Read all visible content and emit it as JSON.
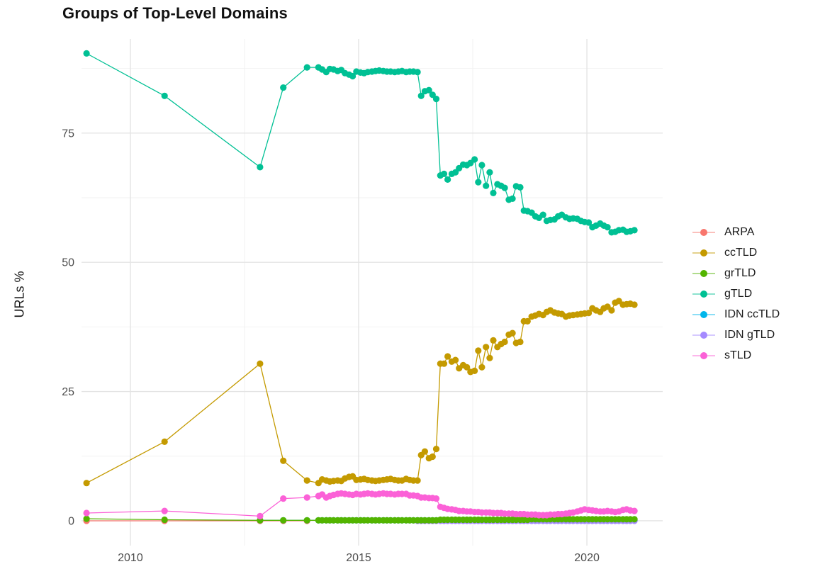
{
  "chart_data": {
    "type": "scatter",
    "title": "Groups of Top-Level Domains",
    "xlabel": "",
    "ylabel": "URLs %",
    "grid": true,
    "legend_position": "right",
    "xlim": [
      2008.93,
      2021.66
    ],
    "ylim": [
      -4.8,
      93.2
    ],
    "x_ticks": {
      "major": [
        2010,
        2015,
        2020
      ],
      "labels": [
        "2010",
        "2015",
        "2020"
      ],
      "minor": [
        2012.5,
        2017.5
      ]
    },
    "y_ticks": {
      "major": [
        0,
        25,
        50,
        75
      ],
      "labels": [
        "0",
        "25",
        "50",
        "75"
      ],
      "minor": [
        12.5,
        37.5,
        62.5,
        87.5
      ]
    },
    "x_main": [
      2009.04,
      2010.75,
      2012.84,
      2013.35,
      2013.87,
      2014.12,
      2014.2,
      2014.29,
      2014.37,
      2014.45,
      2014.54,
      2014.62,
      2014.7,
      2014.79,
      2014.87,
      2014.95,
      2015.04,
      2015.12,
      2015.2,
      2015.29,
      2015.37,
      2015.45,
      2015.54,
      2015.62,
      2015.7,
      2015.79,
      2015.87,
      2015.95,
      2016.04,
      2016.12,
      2016.2,
      2016.29,
      2016.37,
      2016.45,
      2016.54,
      2016.62,
      2016.7,
      2016.79,
      2016.87,
      2016.95,
      2017.04,
      2017.12,
      2017.2,
      2017.29,
      2017.37,
      2017.45,
      2017.54,
      2017.62,
      2017.7,
      2017.79,
      2017.87,
      2017.95,
      2018.04,
      2018.12,
      2018.2,
      2018.29,
      2018.37,
      2018.45,
      2018.54,
      2018.62,
      2018.7,
      2018.79,
      2018.87,
      2018.95,
      2019.04,
      2019.12,
      2019.2,
      2019.29,
      2019.37,
      2019.45,
      2019.54,
      2019.62,
      2019.7,
      2019.79,
      2019.87,
      2019.95,
      2020.04,
      2020.12,
      2020.2,
      2020.29,
      2020.37,
      2020.45,
      2020.54,
      2020.62,
      2020.7,
      2020.79,
      2020.87,
      2020.95,
      2021.04
    ],
    "series": [
      {
        "name": "ARPA",
        "color": "#F8766D",
        "x": [
          2009.04,
          2010.75,
          2012.84,
          2013.35,
          2013.87
        ],
        "y": [
          0.0,
          0.0,
          0.0,
          0.0,
          0.0
        ]
      },
      {
        "name": "ccTLD",
        "color": "#C49A00",
        "x_ref": "x_main",
        "y": [
          7.3,
          15.3,
          30.4,
          11.6,
          7.8,
          7.3,
          8.0,
          7.8,
          7.6,
          7.7,
          7.8,
          7.7,
          8.2,
          8.5,
          8.6,
          7.9,
          8.0,
          8.1,
          7.9,
          7.8,
          7.7,
          7.8,
          7.9,
          8.0,
          8.1,
          7.9,
          7.8,
          7.8,
          8.1,
          7.9,
          7.8,
          7.8,
          12.7,
          13.4,
          12.1,
          12.4,
          13.9,
          30.4,
          30.4,
          31.8,
          30.8,
          31.1,
          29.5,
          30.1,
          29.7,
          28.8,
          29.0,
          32.9,
          29.7,
          33.6,
          31.5,
          34.9,
          33.6,
          34.2,
          34.6,
          36.0,
          36.3,
          34.4,
          34.6,
          38.6,
          38.6,
          39.5,
          39.7,
          40.0,
          39.8,
          40.4,
          40.7,
          40.3,
          40.1,
          40.0,
          39.5,
          39.7,
          39.8,
          39.9,
          40.0,
          40.1,
          40.2,
          41.1,
          40.7,
          40.4,
          41.1,
          41.4,
          40.7,
          42.2,
          42.5,
          41.8,
          41.9,
          42.0,
          41.8
        ]
      },
      {
        "name": "grTLD",
        "color": "#53B400",
        "x_ref": "x_main",
        "y": [
          0.4,
          0.2,
          0.1,
          0.1,
          0.1,
          0.1,
          0.1,
          0.1,
          0.1,
          0.1,
          0.1,
          0.1,
          0.1,
          0.1,
          0.1,
          0.1,
          0.1,
          0.1,
          0.1,
          0.1,
          0.1,
          0.1,
          0.1,
          0.1,
          0.1,
          0.1,
          0.1,
          0.1,
          0.1,
          0.1,
          0.1,
          0.1,
          0.1,
          0.1,
          0.1,
          0.1,
          0.1,
          0.2,
          0.2,
          0.2,
          0.2,
          0.2,
          0.2,
          0.2,
          0.2,
          0.2,
          0.2,
          0.2,
          0.2,
          0.2,
          0.2,
          0.2,
          0.2,
          0.2,
          0.2,
          0.2,
          0.2,
          0.2,
          0.2,
          0.2,
          0.2,
          0.3,
          0.3,
          0.3,
          0.3,
          0.3,
          0.3,
          0.3,
          0.3,
          0.3,
          0.3,
          0.3,
          0.3,
          0.3,
          0.3,
          0.3,
          0.3,
          0.3,
          0.3,
          0.3,
          0.3,
          0.3,
          0.3,
          0.3,
          0.3,
          0.3,
          0.3,
          0.3,
          0.3
        ]
      },
      {
        "name": "gTLD",
        "color": "#00C094",
        "x_ref": "x_main",
        "y": [
          90.4,
          82.2,
          68.4,
          83.8,
          87.7,
          87.7,
          87.3,
          86.8,
          87.4,
          87.3,
          87.0,
          87.2,
          86.6,
          86.3,
          86.0,
          86.9,
          86.7,
          86.6,
          86.8,
          86.9,
          87.0,
          87.1,
          87.0,
          86.9,
          86.9,
          86.8,
          86.9,
          87.0,
          86.8,
          86.9,
          86.9,
          86.8,
          82.2,
          83.1,
          83.3,
          82.4,
          81.6,
          66.8,
          67.1,
          66.0,
          67.1,
          67.4,
          68.2,
          68.9,
          68.8,
          69.2,
          69.9,
          65.5,
          68.8,
          64.8,
          67.4,
          63.4,
          65.1,
          64.8,
          64.4,
          62.1,
          62.3,
          64.7,
          64.5,
          60.0,
          59.9,
          59.6,
          58.9,
          58.6,
          59.2,
          58.0,
          58.2,
          58.3,
          58.9,
          59.2,
          58.7,
          58.4,
          58.5,
          58.4,
          58.0,
          57.8,
          57.7,
          56.8,
          57.1,
          57.5,
          57.1,
          56.8,
          55.8,
          55.9,
          56.2,
          56.3,
          55.9,
          56.0,
          56.2
        ]
      },
      {
        "name": "IDN ccTLD",
        "color": "#00B6EB",
        "x": [
          2012.84,
          2013.35,
          2013.87,
          2014.12,
          2014.2,
          2014.29,
          2014.37,
          2014.45,
          2014.54,
          2014.62,
          2014.7,
          2014.79,
          2014.87,
          2014.95,
          2015.04,
          2015.12,
          2015.2,
          2015.29,
          2015.37,
          2015.45,
          2015.54,
          2015.62,
          2015.7,
          2015.79,
          2015.87,
          2015.95,
          2016.04,
          2016.12,
          2016.2,
          2016.29,
          2016.37,
          2016.45,
          2016.54,
          2016.62,
          2016.7,
          2016.79,
          2016.87,
          2016.95,
          2017.04,
          2017.12,
          2017.2,
          2017.29,
          2017.37,
          2017.45,
          2017.54,
          2017.62,
          2017.7,
          2017.79,
          2017.87,
          2017.95,
          2018.04,
          2018.12,
          2018.2,
          2018.29,
          2018.37,
          2018.45,
          2018.54,
          2018.62,
          2018.7,
          2018.79,
          2018.87,
          2018.95,
          2019.04,
          2019.12,
          2019.2,
          2019.29,
          2019.37,
          2019.45,
          2019.54,
          2019.62,
          2019.7,
          2019.79,
          2019.87,
          2019.95,
          2020.04,
          2020.12,
          2020.2,
          2020.29,
          2020.37,
          2020.45,
          2020.54,
          2020.62,
          2020.7,
          2020.79,
          2020.87,
          2020.95,
          2021.04
        ],
        "y": [
          0.1,
          0.1,
          0.1,
          0.1,
          0.1,
          0.1,
          0.1,
          0.1,
          0.1,
          0.1,
          0.1,
          0.1,
          0.1,
          0.1,
          0.1,
          0.1,
          0.1,
          0.1,
          0.1,
          0.1,
          0.1,
          0.1,
          0.1,
          0.1,
          0.1,
          0.1,
          0.1,
          0.1,
          0.1,
          0.1,
          0.1,
          0.1,
          0.1,
          0.1,
          0.1,
          0.1,
          0.1,
          0.1,
          0.1,
          0.1,
          0.1,
          0.1,
          0.1,
          0.1,
          0.1,
          0.1,
          0.1,
          0.1,
          0.1,
          0.1,
          0.1,
          0.1,
          0.1,
          0.1,
          0.1,
          0.1,
          0.1,
          0.1,
          0.1,
          0.1,
          0.1,
          0.1,
          0.1,
          0.1,
          0.1,
          0.1,
          0.1,
          0.1,
          0.1,
          0.1,
          0.1,
          0.1,
          0.1,
          0.1,
          0.1,
          0.1,
          0.1,
          0.1,
          0.1,
          0.1,
          0.1,
          0.1,
          0.1,
          0.1,
          0.1,
          0.1,
          0.1
        ]
      },
      {
        "name": "IDN gTLD",
        "color": "#A58AFF",
        "x": [
          2016.29,
          2016.37,
          2016.45,
          2016.54,
          2016.62,
          2016.7,
          2016.79,
          2016.87,
          2016.95,
          2017.04,
          2017.12,
          2017.2,
          2017.29,
          2017.37,
          2017.45,
          2017.54,
          2017.62,
          2017.7,
          2017.79,
          2017.87,
          2017.95,
          2018.04,
          2018.12,
          2018.2,
          2018.29,
          2018.37,
          2018.45,
          2018.54,
          2018.62,
          2018.7,
          2018.79,
          2018.87,
          2018.95,
          2019.04,
          2019.12,
          2019.2,
          2019.29,
          2019.37,
          2019.45,
          2019.54,
          2019.62,
          2019.7,
          2019.79,
          2019.87,
          2019.95,
          2020.04,
          2020.12,
          2020.2,
          2020.29,
          2020.37,
          2020.45,
          2020.54,
          2020.62,
          2020.7,
          2020.79,
          2020.87,
          2020.95,
          2021.04
        ],
        "y": [
          0.0,
          0.0,
          0.0,
          0.0,
          0.0,
          0.0,
          0.0,
          0.0,
          0.0,
          0.0,
          0.0,
          0.0,
          0.0,
          0.0,
          0.0,
          0.0,
          0.0,
          0.0,
          0.0,
          0.0,
          0.0,
          0.0,
          0.0,
          0.0,
          0.0,
          0.0,
          0.0,
          0.0,
          0.0,
          0.0,
          0.0,
          0.0,
          0.0,
          0.0,
          0.0,
          0.0,
          0.0,
          0.0,
          0.0,
          0.0,
          0.0,
          0.0,
          0.0,
          0.0,
          0.0,
          0.0,
          0.0,
          0.0,
          0.0,
          0.0,
          0.0,
          0.0,
          0.0,
          0.0,
          0.0,
          0.0,
          0.0,
          0.0
        ]
      },
      {
        "name": "sTLD",
        "color": "#FB61D7",
        "x_ref": "x_main",
        "y": [
          1.5,
          1.9,
          0.9,
          4.3,
          4.5,
          4.8,
          5.1,
          4.5,
          4.8,
          5.0,
          5.2,
          5.3,
          5.2,
          5.1,
          5.0,
          5.2,
          5.1,
          5.2,
          5.3,
          5.2,
          5.1,
          5.2,
          5.3,
          5.2,
          5.2,
          5.1,
          5.2,
          5.2,
          5.2,
          4.9,
          4.9,
          4.8,
          4.5,
          4.5,
          4.4,
          4.4,
          4.3,
          2.7,
          2.5,
          2.3,
          2.2,
          2.1,
          1.9,
          1.9,
          1.8,
          1.8,
          1.7,
          1.7,
          1.6,
          1.6,
          1.6,
          1.5,
          1.5,
          1.5,
          1.4,
          1.4,
          1.4,
          1.3,
          1.3,
          1.3,
          1.2,
          1.2,
          1.2,
          1.1,
          1.1,
          1.1,
          1.2,
          1.2,
          1.3,
          1.3,
          1.4,
          1.5,
          1.6,
          1.8,
          2.0,
          2.2,
          2.1,
          2.0,
          1.9,
          1.8,
          1.8,
          1.9,
          1.8,
          1.7,
          1.8,
          2.1,
          2.2,
          2.0,
          1.9
        ]
      }
    ]
  }
}
